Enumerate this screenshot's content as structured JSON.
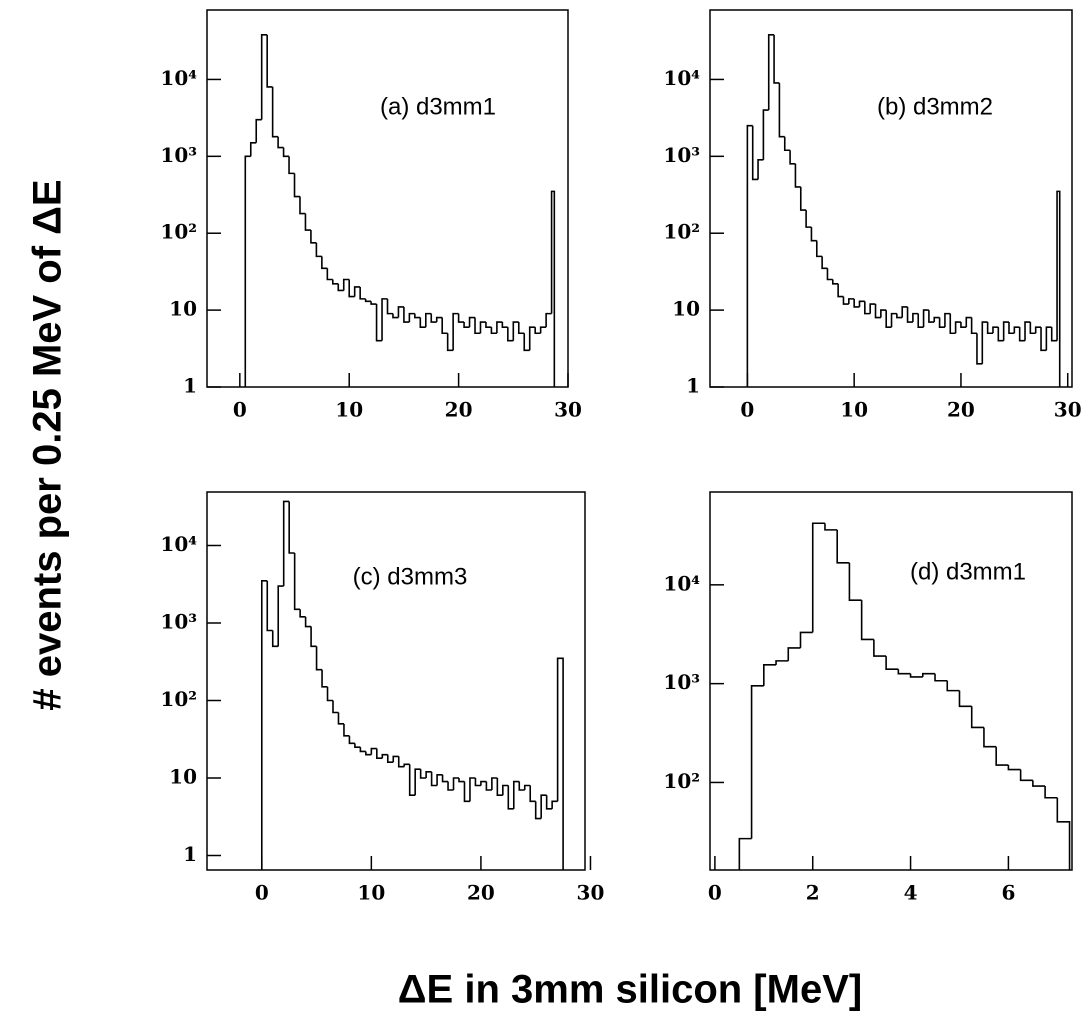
{
  "ylabel": "# events per 0.25 MeV of ΔE",
  "xlabel": "ΔE in 3mm silicon [MeV]",
  "chart_data": [
    {
      "type": "histogram",
      "annotation": "(a) d3mm1",
      "color": "#000000",
      "log_y": true,
      "xlim": [
        -3,
        30
      ],
      "ylim": [
        1,
        80000
      ],
      "xticks": [
        0,
        10,
        20,
        30
      ],
      "yticks": [
        1,
        10,
        {
          "value": 100,
          "label": "10²"
        },
        {
          "value": 1000,
          "label": "10³"
        },
        {
          "value": 10000,
          "label": "10⁴"
        }
      ],
      "bins": [
        0.5,
        1,
        1.5,
        2,
        2.5,
        3,
        3.5,
        4,
        4.5,
        5,
        5.5,
        6,
        6.5,
        7,
        7.5,
        8,
        8.5,
        9,
        9.5,
        10,
        10.5,
        11,
        11.5,
        12,
        12.5,
        13,
        13.5,
        14,
        14.5,
        15,
        15.5,
        16,
        16.5,
        17,
        17.5,
        18,
        18.5,
        19,
        19.5,
        20,
        20.5,
        21,
        21.5,
        22,
        22.5,
        23,
        23.5,
        24,
        24.5,
        25,
        25.5,
        26,
        26.5,
        27,
        27.5,
        28,
        28.5,
        28.75
      ],
      "values": [
        1000,
        1500,
        3000,
        38000,
        8000,
        1800,
        1300,
        1000,
        600,
        300,
        180,
        110,
        75,
        50,
        35,
        25,
        22,
        18,
        25,
        15,
        20,
        14,
        13,
        12,
        4,
        14,
        9,
        8,
        11,
        7,
        9,
        8,
        6,
        9,
        7,
        8,
        5,
        3,
        9,
        7,
        6,
        8,
        5,
        7,
        6,
        5,
        7,
        6,
        4,
        7,
        5,
        3,
        6,
        5,
        6,
        9,
        350
      ]
    },
    {
      "type": "histogram",
      "annotation": "(b) d3mm2",
      "color": "#000000",
      "log_y": true,
      "xlim": [
        -3.5,
        30.4
      ],
      "ylim": [
        1,
        80000
      ],
      "xticks": [
        0,
        10,
        20,
        30
      ],
      "yticks": [
        1,
        10,
        {
          "value": 100,
          "label": "10²"
        },
        {
          "value": 1000,
          "label": "10³"
        },
        {
          "value": 10000,
          "label": "10⁴"
        }
      ],
      "bins": [
        0,
        0.5,
        1,
        1.5,
        2,
        2.5,
        3,
        3.5,
        4,
        4.5,
        5,
        5.5,
        6,
        6.5,
        7,
        7.5,
        8,
        8.5,
        9,
        9.5,
        10,
        10.5,
        11,
        11.5,
        12,
        12.5,
        13,
        13.5,
        14,
        14.5,
        15,
        15.5,
        16,
        16.5,
        17,
        17.5,
        18,
        18.5,
        19,
        19.5,
        20,
        20.5,
        21,
        21.5,
        22,
        22.5,
        23,
        23.5,
        24,
        24.5,
        25,
        25.5,
        26,
        26.5,
        27,
        27.5,
        28,
        28.5,
        29,
        29.25
      ],
      "values": [
        2500,
        500,
        900,
        4000,
        38000,
        9000,
        1800,
        1200,
        800,
        400,
        200,
        120,
        80,
        50,
        35,
        25,
        22,
        15,
        12,
        14,
        11,
        13,
        9,
        12,
        8,
        10,
        6,
        9,
        8,
        11,
        7,
        9,
        6,
        10,
        7,
        8,
        6,
        9,
        5,
        7,
        6,
        8,
        5,
        2,
        7,
        5,
        6,
        4,
        7,
        5,
        6,
        4,
        7,
        5,
        6,
        3,
        6,
        4,
        350
      ]
    },
    {
      "type": "histogram",
      "annotation": "(c) d3mm3",
      "color": "#000000",
      "log_y": true,
      "xlim": [
        -5,
        29.5
      ],
      "ylim": [
        0.65,
        49000
      ],
      "xticks": [
        0,
        10,
        20,
        30
      ],
      "yticks": [
        1,
        10,
        {
          "value": 100,
          "label": "10²"
        },
        {
          "value": 1000,
          "label": "10³"
        },
        {
          "value": 10000,
          "label": "10⁴"
        }
      ],
      "bins": [
        0,
        0.5,
        1,
        1.5,
        2,
        2.5,
        3,
        3.5,
        4,
        4.5,
        5,
        5.5,
        6,
        6.5,
        7,
        7.5,
        8,
        8.5,
        9,
        9.5,
        10,
        10.5,
        11,
        11.5,
        12,
        12.5,
        13,
        13.5,
        14,
        14.5,
        15,
        15.5,
        16,
        16.5,
        17,
        17.5,
        18,
        18.5,
        19,
        19.5,
        20,
        20.5,
        21,
        21.5,
        22,
        22.5,
        23,
        23.5,
        24,
        24.5,
        25,
        25.5,
        26,
        26.5,
        27,
        27.5
      ],
      "values": [
        3500,
        800,
        500,
        3000,
        37000,
        8000,
        1500,
        1200,
        900,
        500,
        250,
        150,
        100,
        70,
        50,
        35,
        28,
        25,
        22,
        20,
        24,
        18,
        20,
        16,
        19,
        14,
        15,
        6,
        13,
        10,
        12,
        8,
        11,
        9,
        7,
        10,
        9,
        5,
        10,
        8,
        9,
        7,
        10,
        6,
        8,
        4,
        9,
        7,
        8,
        5,
        3,
        6,
        4,
        5,
        350
      ]
    },
    {
      "type": "histogram",
      "annotation": "(d) d3mm1",
      "color": "#000000",
      "log_y": true,
      "xlim": [
        -0.1,
        7.3
      ],
      "ylim": [
        13,
        87000
      ],
      "xticks": [
        0,
        2,
        4,
        6
      ],
      "yticks": [
        {
          "value": 100,
          "label": "10²"
        },
        {
          "value": 1000,
          "label": "10³"
        },
        {
          "value": 10000,
          "label": "10⁴"
        }
      ],
      "bins": [
        0.5,
        0.75,
        1,
        1.25,
        1.5,
        1.75,
        2,
        2.25,
        2.5,
        2.75,
        3,
        3.25,
        3.5,
        3.75,
        4,
        4.25,
        4.5,
        4.75,
        5,
        5.25,
        5.5,
        5.75,
        6,
        6.25,
        6.5,
        6.75,
        7,
        7.25
      ],
      "values": [
        27,
        950,
        1550,
        1700,
        2300,
        3300,
        42000,
        36000,
        16700,
        7000,
        2800,
        1900,
        1400,
        1260,
        1170,
        1260,
        1070,
        850,
        590,
        360,
        230,
        150,
        135,
        105,
        92,
        70,
        40
      ]
    }
  ]
}
